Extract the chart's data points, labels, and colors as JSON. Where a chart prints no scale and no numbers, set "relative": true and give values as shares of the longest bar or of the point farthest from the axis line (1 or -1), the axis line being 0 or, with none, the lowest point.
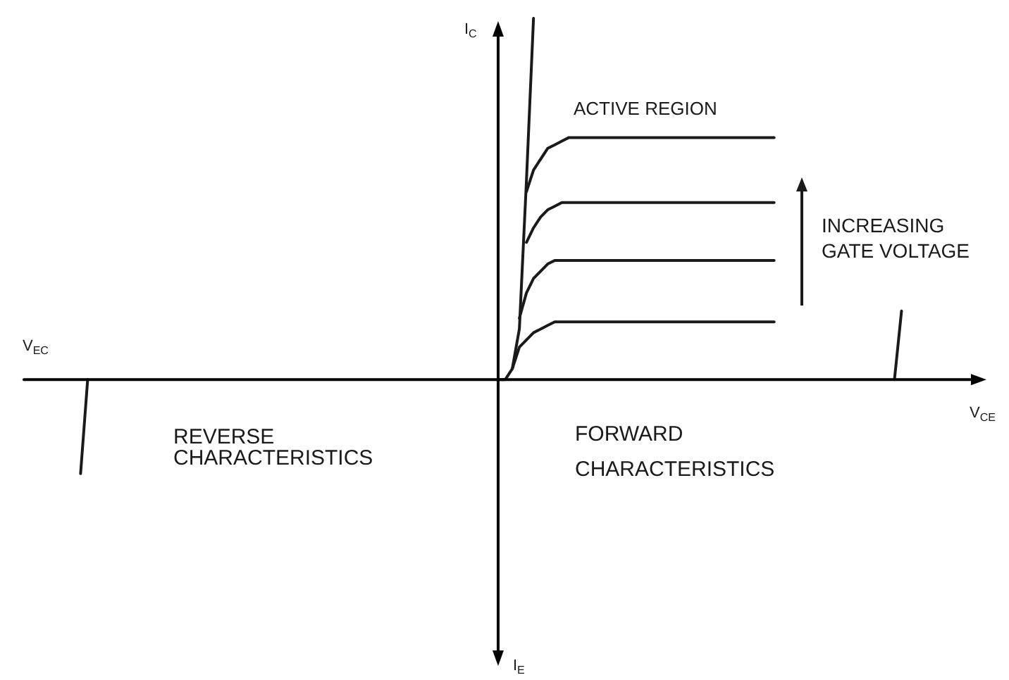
{
  "chart_data": {
    "type": "line",
    "relative": true,
    "line_style": "solid",
    "xlabel": "V$_{CE}$",
    "ylabel": "I$_{C}$",
    "annotations": [
      "ACTIVE REGION",
      "INCREASING\nGATE VOLTAGE",
      "REVERSE\nCHARACTERISTICS",
      "FORWARD\nCHARACTERISTICS",
      "V$_{EC}$",
      "I$_{E}$"
    ],
    "categories": [
      null,
      null,
      null,
      null,
      null,
      null,
      null,
      null,
      null,
      null,
      null,
      null,
      null,
      null,
      null,
      null,
      null,
      null,
      null,
      null,
      null,
      null,
      null,
      null,
      null,
      null,
      null,
      null,
      null,
      null,
      null,
      null,
      null,
      null,
      null,
      null,
      null,
      null,
      null,
      null,
      null,
      null,
      null,
      null,
      null,
      null,
      null,
      null,
      null,
      null,
      null,
      null,
      null,
      null,
      null,
      null,
      null,
      null,
      null,
      null,
      null,
      null,
      null,
      null,
      null,
      null,
      null,
      null,
      null,
      null,
      null,
      null,
      null,
      null,
      null,
      null,
      null,
      null,
      null,
      null,
      null,
      null,
      null,
      null,
      null,
      null,
      null,
      null,
      null,
      null,
      null,
      null,
      null,
      null,
      null,
      null,
      null,
      null,
      null,
      null,
      null,
      null,
      null,
      null,
      null,
      null,
      null,
      null,
      null,
      null,
      null,
      null,
      null,
      null,
      null,
      null,
      null,
      null,
      null,
      null,
      null,
      null,
      null,
      null,
      null,
      null,
      null,
      null,
      null,
      null,
      null,
      null,
      null,
      null,
      null,
      null,
      null
    ],
    "series": [
      {
        "color": "#1a1a1a",
        "values": [
          null,
          null,
          null,
          null,
          null,
          null,
          null,
          null,
          null,
          null,
          null,
          null,
          null,
          null,
          null,
          null,
          null,
          null,
          null,
          null,
          null,
          null,
          null,
          null,
          null,
          null,
          null,
          null,
          null,
          null,
          null,
          null,
          null,
          null,
          null,
          null,
          null,
          null,
          null,
          null,
          null,
          null,
          null,
          null,
          null,
          null,
          null,
          null,
          null,
          null,
          null,
          null,
          null,
          null,
          null,
          null,
          null,
          null,
          null,
          null,
          null,
          null,
          null,
          null,
          null,
          null,
          null,
          0,
          0,
          0.03,
          0.14,
          0.55,
          1,
          null,
          null,
          null,
          null,
          null,
          null,
          null,
          null,
          null,
          null,
          null,
          null,
          null,
          null,
          null,
          null,
          null,
          null,
          null,
          null,
          null,
          null,
          null,
          null,
          null,
          null,
          null,
          null,
          null,
          null,
          null,
          null,
          null,
          null,
          null,
          null,
          null,
          null,
          null,
          null,
          null,
          null,
          null,
          null,
          null,
          null,
          null,
          null,
          null,
          null,
          null,
          null,
          null,
          null,
          null,
          null,
          null,
          null,
          null,
          null,
          null,
          null,
          null,
          null
        ]
      },
      {
        "color": "#1a1a1a",
        "values": [
          null,
          null,
          null,
          null,
          null,
          null,
          null,
          null,
          null,
          null,
          null,
          null,
          null,
          null,
          null,
          null,
          null,
          null,
          null,
          null,
          null,
          null,
          null,
          null,
          null,
          null,
          null,
          null,
          null,
          null,
          null,
          null,
          null,
          null,
          null,
          null,
          null,
          null,
          null,
          null,
          null,
          null,
          null,
          null,
          null,
          null,
          null,
          null,
          null,
          null,
          null,
          null,
          null,
          null,
          null,
          null,
          null,
          null,
          null,
          null,
          null,
          null,
          null,
          null,
          null,
          null,
          null,
          null,
          null,
          0.03,
          0.09,
          0.11,
          0.13,
          0.14,
          0.15,
          0.16,
          0.16,
          0.16,
          0.16,
          0.16,
          0.16,
          0.16,
          0.16,
          0.16,
          0.16,
          0.16,
          0.16,
          0.16,
          0.16,
          0.16,
          0.16,
          0.16,
          0.16,
          0.16,
          0.16,
          0.16,
          0.16,
          0.16,
          0.16,
          0.16,
          0.16,
          0.16,
          0.16,
          0.16,
          0.16,
          0.16,
          0.16,
          null,
          null,
          null,
          null,
          null,
          null,
          null,
          null,
          null,
          null,
          null,
          null,
          null,
          null,
          null,
          null,
          null,
          null,
          null,
          null,
          null,
          null,
          null,
          null,
          null,
          null,
          null,
          null,
          null,
          null
        ]
      },
      {
        "color": "#1a1a1a",
        "values": [
          null,
          null,
          null,
          null,
          null,
          null,
          null,
          null,
          null,
          null,
          null,
          null,
          null,
          null,
          null,
          null,
          null,
          null,
          null,
          null,
          null,
          null,
          null,
          null,
          null,
          null,
          null,
          null,
          null,
          null,
          null,
          null,
          null,
          null,
          null,
          null,
          null,
          null,
          null,
          null,
          null,
          null,
          null,
          null,
          null,
          null,
          null,
          null,
          null,
          null,
          null,
          null,
          null,
          null,
          null,
          null,
          null,
          null,
          null,
          null,
          null,
          null,
          null,
          null,
          null,
          null,
          null,
          null,
          null,
          null,
          0.17,
          0.24,
          0.28,
          0.3,
          0.32,
          0.33,
          0.33,
          0.33,
          0.33,
          0.33,
          0.33,
          0.33,
          0.33,
          0.33,
          0.33,
          0.33,
          0.33,
          0.33,
          0.33,
          0.33,
          0.33,
          0.33,
          0.33,
          0.33,
          0.33,
          0.33,
          0.33,
          0.33,
          0.33,
          0.33,
          0.33,
          0.33,
          0.33,
          0.33,
          0.33,
          0.33,
          0.33,
          null,
          null,
          null,
          null,
          null,
          null,
          null,
          null,
          null,
          null,
          null,
          null,
          null,
          null,
          null,
          null,
          null,
          null,
          null,
          null,
          null,
          null,
          null,
          null,
          null,
          null,
          null,
          null,
          null,
          null
        ]
      },
      {
        "color": "#1a1a1a",
        "values": [
          null,
          null,
          null,
          null,
          null,
          null,
          null,
          null,
          null,
          null,
          null,
          null,
          null,
          null,
          null,
          null,
          null,
          null,
          null,
          null,
          null,
          null,
          null,
          null,
          null,
          null,
          null,
          null,
          null,
          null,
          null,
          null,
          null,
          null,
          null,
          null,
          null,
          null,
          null,
          null,
          null,
          null,
          null,
          null,
          null,
          null,
          null,
          null,
          null,
          null,
          null,
          null,
          null,
          null,
          null,
          null,
          null,
          null,
          null,
          null,
          null,
          null,
          null,
          null,
          null,
          null,
          null,
          null,
          null,
          null,
          null,
          0.38,
          0.42,
          0.45,
          0.47,
          0.48,
          0.49,
          0.49,
          0.49,
          0.49,
          0.49,
          0.49,
          0.49,
          0.49,
          0.49,
          0.49,
          0.49,
          0.49,
          0.49,
          0.49,
          0.49,
          0.49,
          0.49,
          0.49,
          0.49,
          0.49,
          0.49,
          0.49,
          0.49,
          0.49,
          0.49,
          0.49,
          0.49,
          0.49,
          0.49,
          0.49,
          0.49,
          null,
          null,
          null,
          null,
          null,
          null,
          null,
          null,
          null,
          null,
          null,
          null,
          null,
          null,
          null,
          null,
          null,
          null,
          null,
          null,
          null,
          null,
          null,
          null,
          null,
          null,
          null,
          null,
          null,
          null
        ]
      },
      {
        "color": "#1a1a1a",
        "values": [
          null,
          null,
          null,
          null,
          null,
          null,
          null,
          null,
          null,
          null,
          null,
          null,
          null,
          null,
          null,
          null,
          null,
          null,
          null,
          null,
          null,
          null,
          null,
          null,
          null,
          null,
          null,
          null,
          null,
          null,
          null,
          null,
          null,
          null,
          null,
          null,
          null,
          null,
          null,
          null,
          null,
          null,
          null,
          null,
          null,
          null,
          null,
          null,
          null,
          null,
          null,
          null,
          null,
          null,
          null,
          null,
          null,
          null,
          null,
          null,
          null,
          null,
          null,
          null,
          null,
          null,
          null,
          null,
          null,
          null,
          null,
          0.52,
          0.58,
          0.61,
          0.64,
          0.65,
          0.66,
          0.67,
          0.67,
          0.67,
          0.67,
          0.67,
          0.67,
          0.67,
          0.67,
          0.67,
          0.67,
          0.67,
          0.67,
          0.67,
          0.67,
          0.67,
          0.67,
          0.67,
          0.67,
          0.67,
          0.67,
          0.67,
          0.67,
          0.67,
          0.67,
          0.67,
          0.67,
          0.67,
          0.67,
          0.67,
          0.67,
          null,
          null,
          null,
          null,
          null,
          null,
          null,
          null,
          null,
          null,
          null,
          null,
          null,
          null,
          null,
          null,
          null,
          null,
          null,
          null,
          null,
          null,
          null,
          null,
          null,
          null,
          null,
          null,
          null,
          null
        ]
      },
      {
        "color": "#1a1a1a",
        "values": [
          null,
          null,
          null,
          null,
          null,
          null,
          null,
          null,
          -0.26,
          0,
          null,
          null,
          null,
          null,
          null,
          null,
          null,
          null,
          null,
          null,
          null,
          null,
          null,
          null,
          null,
          null,
          null,
          null,
          null,
          null,
          null,
          null,
          null,
          null,
          null,
          null,
          null,
          null,
          null,
          null,
          null,
          null,
          null,
          null,
          null,
          null,
          null,
          null,
          null,
          null,
          null,
          null,
          null,
          null,
          null,
          null,
          null,
          null,
          null,
          null,
          null,
          null,
          null,
          null,
          null,
          null,
          null,
          null,
          null,
          null,
          null,
          null,
          null,
          null,
          null,
          null,
          null,
          null,
          null,
          null,
          null,
          null,
          null,
          null,
          null,
          null,
          null,
          null,
          null,
          null,
          null,
          null,
          null,
          null,
          null,
          null,
          null,
          null,
          null,
          null,
          null,
          null,
          null,
          null,
          null,
          null,
          null,
          null,
          null,
          null,
          null,
          null,
          null,
          null,
          null,
          null,
          null,
          null,
          null,
          null,
          null,
          null,
          null,
          null,
          null,
          null,
          null,
          null,
          null,
          null,
          null,
          null,
          null,
          null,
          null,
          null,
          null
        ]
      },
      {
        "color": "#1a1a1a",
        "values": [
          null,
          null,
          null,
          null,
          null,
          null,
          null,
          null,
          null,
          null,
          null,
          null,
          null,
          null,
          null,
          null,
          null,
          null,
          null,
          null,
          null,
          null,
          null,
          null,
          null,
          null,
          null,
          null,
          null,
          null,
          null,
          null,
          null,
          null,
          null,
          null,
          null,
          null,
          null,
          null,
          null,
          null,
          null,
          null,
          null,
          null,
          null,
          null,
          null,
          null,
          null,
          null,
          null,
          null,
          null,
          null,
          null,
          null,
          null,
          null,
          null,
          null,
          null,
          null,
          null,
          null,
          null,
          null,
          null,
          null,
          null,
          null,
          null,
          null,
          null,
          null,
          null,
          null,
          null,
          null,
          null,
          null,
          null,
          null,
          null,
          null,
          null,
          null,
          null,
          null,
          null,
          null,
          null,
          null,
          null,
          null,
          null,
          null,
          null,
          null,
          null,
          null,
          null,
          null,
          null,
          null,
          null,
          null,
          null,
          null,
          null,
          null,
          null,
          null,
          null,
          null,
          null,
          null,
          null,
          null,
          null,
          null,
          null,
          0,
          0.19,
          null,
          null,
          null,
          null,
          null,
          null,
          null,
          null,
          null,
          null,
          null,
          null
        ]
      }
    ]
  }
}
